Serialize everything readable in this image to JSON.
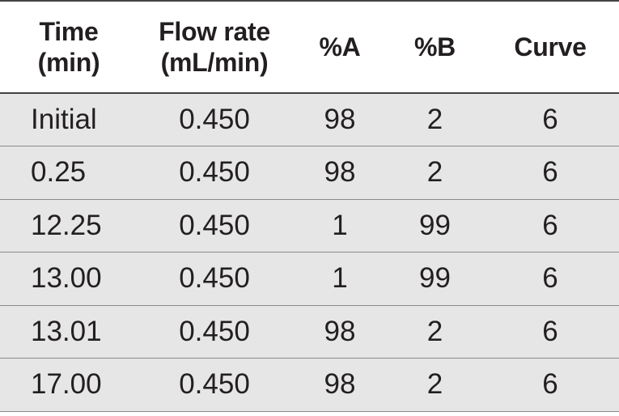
{
  "table": {
    "headers": [
      {
        "line1": "Time",
        "line2": "(min)"
      },
      {
        "line1": "Flow rate",
        "line2": "(mL/min)"
      },
      {
        "line1": "%A",
        "line2": ""
      },
      {
        "line1": "%B",
        "line2": ""
      },
      {
        "line1": "Curve",
        "line2": ""
      }
    ],
    "rows": [
      [
        "Initial",
        "0.450",
        "98",
        "2",
        "6"
      ],
      [
        "0.25",
        "0.450",
        "98",
        "2",
        "6"
      ],
      [
        "12.25",
        "0.450",
        "1",
        "99",
        "6"
      ],
      [
        "13.00",
        "0.450",
        "1",
        "99",
        "6"
      ],
      [
        "13.01",
        "0.450",
        "98",
        "2",
        "6"
      ],
      [
        "17.00",
        "0.450",
        "98",
        "2",
        "6"
      ]
    ]
  },
  "colors": {
    "row_background": "#e6e6e7",
    "header_background": "#ffffff",
    "text": "#231f20",
    "rule": "#444444"
  }
}
